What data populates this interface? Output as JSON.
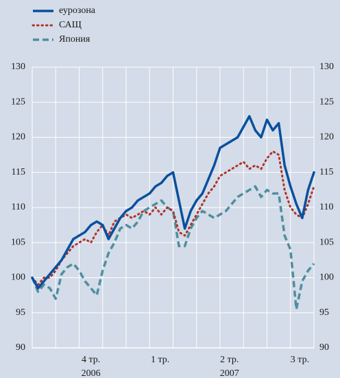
{
  "chart_data": {
    "type": "line",
    "x": [
      0,
      0.25,
      0.5,
      0.75,
      1,
      1.25,
      1.5,
      1.75,
      2,
      2.25,
      2.5,
      2.75,
      3,
      3.25,
      3.5,
      3.75,
      4,
      4.25,
      4.5,
      4.75,
      5,
      5.25,
      5.5,
      5.75,
      6,
      6.25,
      6.5,
      6.75,
      7,
      7.25,
      7.5,
      7.75,
      8,
      8.25,
      8.5,
      8.75,
      9,
      9.25,
      9.5,
      9.75,
      10,
      10.25,
      10.5,
      10.75,
      11,
      11.25,
      11.5,
      11.75,
      12
    ],
    "series": [
      {
        "name": "еурозона",
        "color": "#0a4f9e",
        "dash": "solid",
        "values": [
          100,
          98.5,
          99.5,
          100.5,
          101.5,
          102.5,
          104,
          105.5,
          106,
          106.5,
          107.5,
          108,
          107.5,
          105.5,
          107,
          108.5,
          109.5,
          110,
          111,
          111.5,
          112,
          113,
          113.5,
          114.5,
          115,
          111,
          107,
          109.5,
          111,
          112,
          114,
          116,
          118.5,
          119,
          119.5,
          120,
          121.5,
          123,
          121,
          120,
          122.5,
          121,
          122,
          116,
          113,
          110.5,
          108.5,
          112.5,
          115
        ]
      },
      {
        "name": "САЩ",
        "color": "#b0322a",
        "dash": "dot",
        "values": [
          100,
          99,
          100,
          100,
          101,
          102.5,
          103.5,
          104.5,
          105,
          105.5,
          105,
          106.5,
          107.5,
          106,
          108,
          108.5,
          109,
          108.5,
          109,
          109.5,
          109,
          110,
          109,
          110,
          109.5,
          106.5,
          106,
          107.5,
          109,
          110.5,
          112,
          113,
          114.5,
          115,
          115.5,
          116,
          116.5,
          115.5,
          116,
          115.5,
          117,
          118,
          117.5,
          112.5,
          110,
          109,
          108.5,
          110.5,
          113
        ]
      },
      {
        "name": "Япония",
        "color": "#4f8e9e",
        "dash": "dash",
        "values": [
          100,
          98,
          99,
          98.5,
          97,
          100.5,
          101.5,
          102,
          101,
          99.5,
          98.5,
          97.5,
          101,
          103.5,
          105,
          107,
          107.5,
          107,
          108,
          109.5,
          110,
          110.5,
          111,
          110,
          109.5,
          104.5,
          104.5,
          107,
          108.5,
          109.5,
          109,
          108.5,
          109,
          109.5,
          110.5,
          111.5,
          112,
          112.5,
          113,
          111.5,
          112.5,
          112,
          112,
          106,
          104,
          95.5,
          99.5,
          101,
          102
        ]
      }
    ],
    "xlim": [
      0,
      12
    ],
    "xgrid": [
      0,
      1,
      2,
      3,
      4,
      5,
      6,
      7,
      8,
      9,
      10,
      11,
      12
    ],
    "xticks": [
      {
        "value": 2.5,
        "label": "4 тр."
      },
      {
        "value": 5.45,
        "label": "1 тр."
      },
      {
        "value": 8.4,
        "label": "2 тр."
      },
      {
        "value": 11.4,
        "label": "3 тр."
      }
    ],
    "years": [
      {
        "value": 2.5,
        "label": "2006"
      },
      {
        "value": 8.4,
        "label": "2007"
      }
    ],
    "ylim": [
      90,
      130
    ],
    "yticks": [
      90,
      95,
      100,
      105,
      110,
      115,
      120,
      125,
      130
    ],
    "y2lim": [
      90,
      130
    ],
    "y2ticks": [
      90,
      95,
      100,
      105,
      110,
      115,
      120,
      125,
      130
    ],
    "grid": true
  }
}
